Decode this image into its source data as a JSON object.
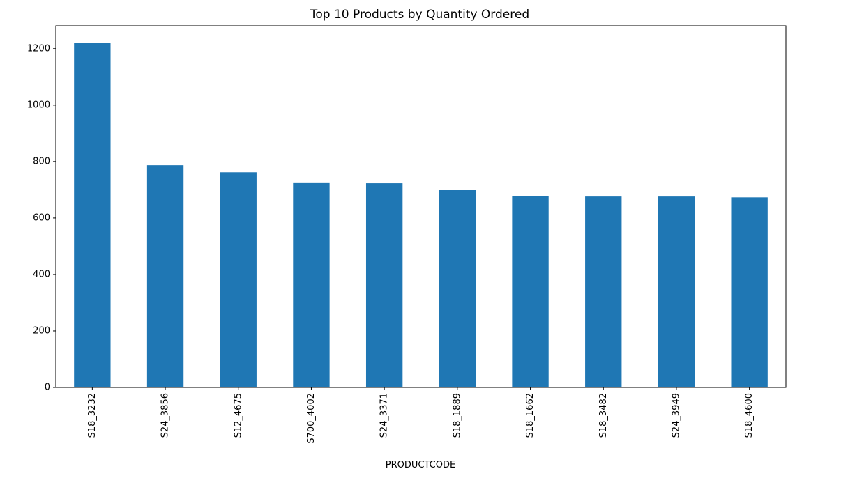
{
  "chart_data": {
    "type": "bar",
    "title": "Top 10 Products by Quantity Ordered",
    "xlabel": "PRODUCTCODE",
    "ylabel": "",
    "categories": [
      "S18_3232",
      "S24_3856",
      "S12_4675",
      "S700_4002",
      "S24_3371",
      "S18_1889",
      "S18_1662",
      "S18_3482",
      "S24_3949",
      "S18_4600"
    ],
    "values": [
      1220,
      787,
      762,
      726,
      723,
      700,
      678,
      676,
      676,
      673
    ],
    "ylim": [
      0,
      1281
    ],
    "yticks": [
      0,
      200,
      400,
      600,
      800,
      1000,
      1200
    ],
    "grid": false,
    "legend": "none"
  },
  "colors": {
    "bar": "#1f77b4",
    "axes": "#000000",
    "background": "#ffffff"
  }
}
